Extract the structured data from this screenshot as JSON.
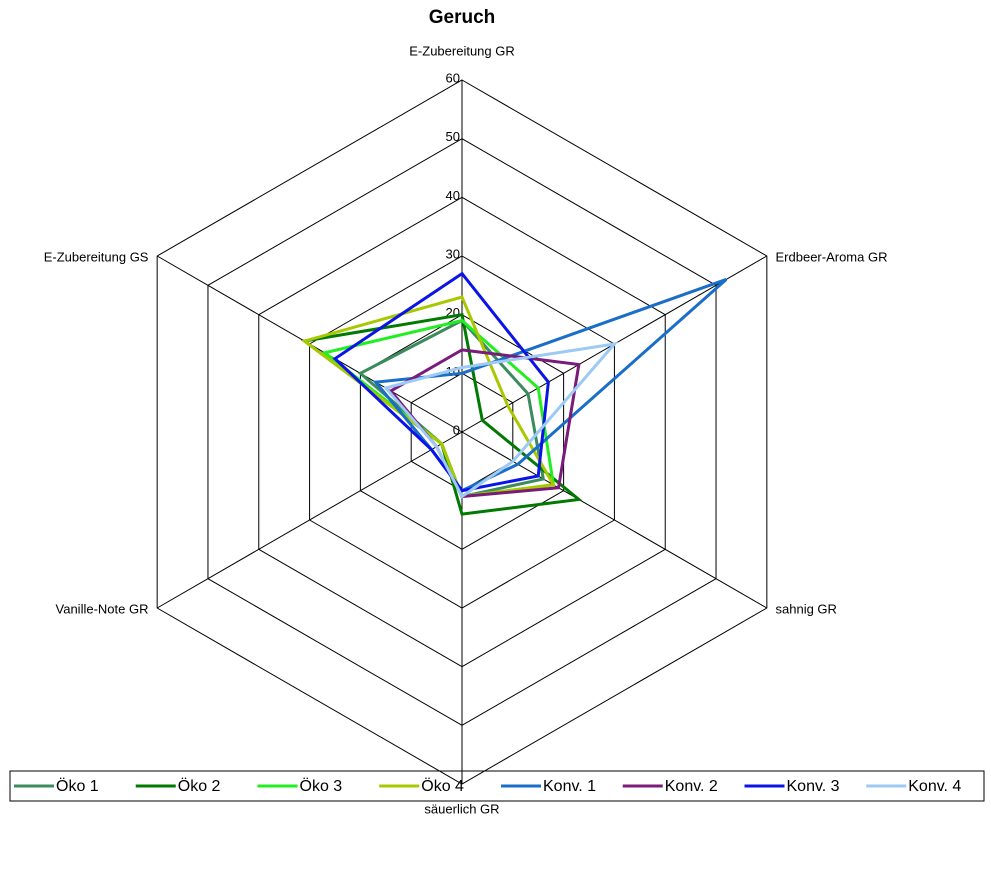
{
  "chart_data": {
    "type": "radar",
    "title": "Geruch",
    "categories": [
      "E-Zubereitung GR",
      "Erdbeer-Aroma GR",
      "sahnig GR",
      "säuerlich GR",
      "Vanille-Note GR",
      "E-Zubereitung GS"
    ],
    "ylim": [
      0,
      60
    ],
    "yticks": [
      0,
      10,
      20,
      30,
      40,
      50,
      60
    ],
    "grid": true,
    "legend": "bottom",
    "series": [
      {
        "name": "Öko 1",
        "color": "#3a8c5c",
        "values": [
          19,
          13,
          16,
          11,
          4,
          20
        ]
      },
      {
        "name": "Öko 2",
        "color": "#007a00",
        "values": [
          20,
          4,
          23,
          14,
          4,
          31
        ]
      },
      {
        "name": "Öko 3",
        "color": "#22ee22",
        "values": [
          19,
          15,
          18,
          11,
          4,
          27
        ]
      },
      {
        "name": "Öko 4",
        "color": "#a8c800",
        "values": [
          23,
          9,
          18,
          11,
          4,
          31
        ]
      },
      {
        "name": "Konv. 1",
        "color": "#1a6ec8",
        "values": [
          10,
          52,
          11,
          10,
          6,
          17
        ]
      },
      {
        "name": "Konv. 2",
        "color": "#7a1a7a",
        "values": [
          14,
          23,
          19,
          11,
          5,
          14
        ]
      },
      {
        "name": "Konv. 3",
        "color": "#0a14e6",
        "values": [
          27,
          17,
          15,
          10,
          6,
          25
        ]
      },
      {
        "name": "Konv. 4",
        "color": "#9ccaf5",
        "values": [
          11,
          30,
          10,
          11,
          5,
          15
        ]
      }
    ]
  }
}
